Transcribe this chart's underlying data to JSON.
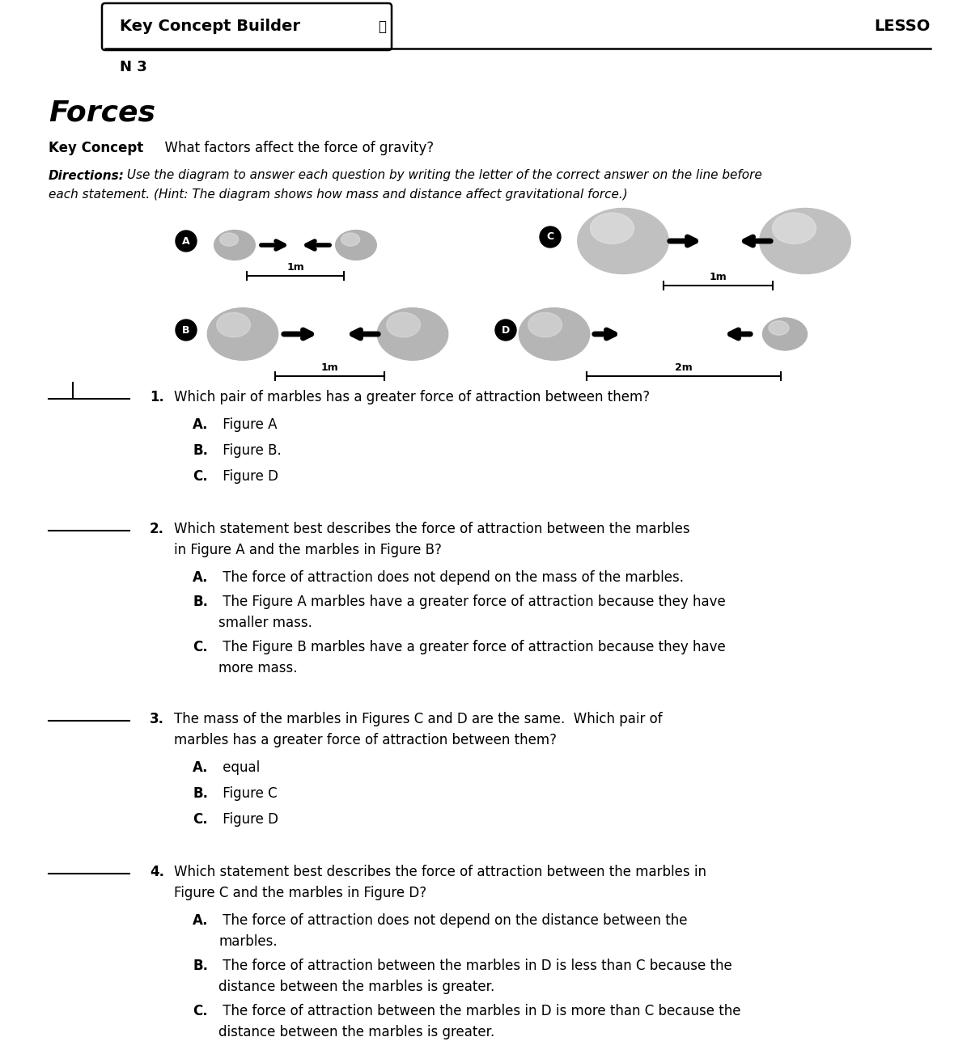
{
  "bg_color": "#ffffff",
  "title_header": "Key Concept Builder",
  "lesso_text": "LESSO",
  "n3_text": "N 3",
  "subject_title": "Forces",
  "q1_text": "Which pair of marbles has a greater force of attraction between them?",
  "q1_choices": [
    [
      "A.",
      " Figure A"
    ],
    [
      "B.",
      " Figure B."
    ],
    [
      "C.",
      " Figure D"
    ]
  ],
  "q2_line1": "Which statement best describes the force of attraction between the marbles",
  "q2_line2": "in Figure A and the marbles in Figure B?",
  "q2_choices": [
    [
      "A.",
      " The force of attraction does not depend on the mass of the marbles.",
      ""
    ],
    [
      "B.",
      " The Figure A marbles have a greater force of attraction because they have",
      "smaller mass."
    ],
    [
      "C.",
      " The Figure B marbles have a greater force of attraction because they have",
      "more mass."
    ]
  ],
  "q3_line1": "The mass of the marbles in Figures C and D are the same.  Which pair of",
  "q3_line2": "marbles has a greater force of attraction between them?",
  "q3_choices": [
    [
      "A.",
      " equal"
    ],
    [
      "B.",
      " Figure C"
    ],
    [
      "C.",
      " Figure D"
    ]
  ],
  "q4_line1": "Which statement best describes the force of attraction between the marbles in",
  "q4_line2": "Figure C and the marbles in Figure D?",
  "q4_choices": [
    [
      "A.",
      " The force of attraction does not depend on the distance between the",
      "marbles."
    ],
    [
      "B.",
      " The force of attraction between the marbles in D is less than C because the",
      "distance between the marbles is greater."
    ],
    [
      "C.",
      " The force of attraction between the marbles in D is more than C because the",
      "distance between the marbles is greater."
    ]
  ]
}
